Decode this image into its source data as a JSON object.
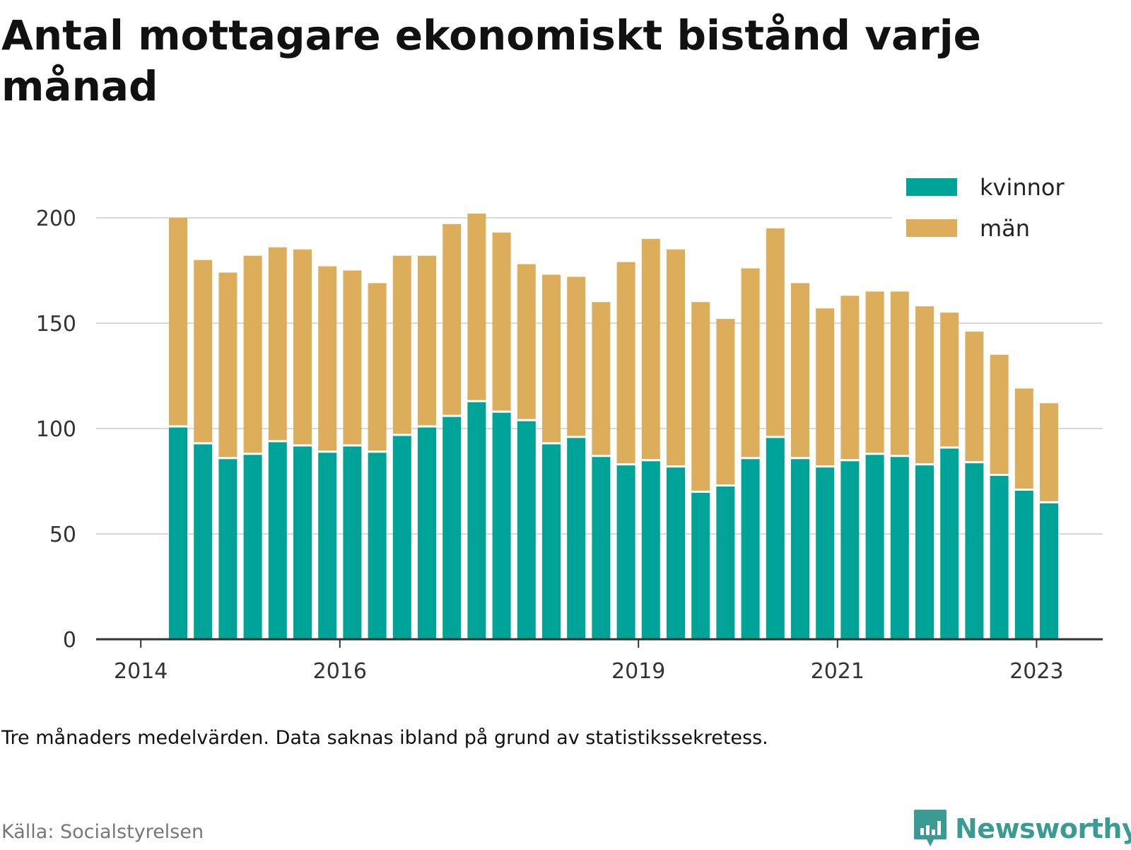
{
  "title": "Antal mottagare ekonomiskt bistånd varje månad",
  "note": "Tre månaders medelvärden. Data saknas ibland på grund av statistikssekretess.",
  "source": "Källa: Socialstyrelsen",
  "brand": {
    "name": "Newsworthy",
    "icon": "bar-chart-bubble-icon",
    "color": "#3a9b93"
  },
  "chart_data": {
    "type": "bar",
    "stacked": true,
    "title": "Antal mottagare ekonomiskt bistånd varje månad",
    "xlabel": "",
    "ylabel": "",
    "ylim": [
      0,
      200
    ],
    "yticks": [
      0,
      50,
      100,
      150,
      200
    ],
    "xtick_labels": [
      "2014",
      "2016",
      "2019",
      "2021",
      "2023"
    ],
    "grid": "horizontal",
    "legend_position": "top-right",
    "categories": [
      "2014-Q2",
      "2014-Q3",
      "2014-Q4",
      "2015-Q1",
      "2015-Q2",
      "2015-Q3",
      "2015-Q4",
      "2016-Q1",
      "2016-Q2",
      "2016-Q3",
      "2016-Q4",
      "2017-Q1",
      "2017-Q2",
      "2017-Q3",
      "2017-Q4",
      "2018-Q1",
      "2018-Q2",
      "2018-Q3",
      "2018-Q4",
      "2019-Q1",
      "2019-Q2",
      "2019-Q3",
      "2019-Q4",
      "2020-Q1",
      "2020-Q2",
      "2020-Q3",
      "2020-Q4",
      "2021-Q1",
      "2021-Q2",
      "2021-Q3",
      "2021-Q4",
      "2022-Q1",
      "2022-Q2",
      "2022-Q3",
      "2022-Q4",
      "2023-Q1"
    ],
    "series": [
      {
        "name": "kvinnor",
        "color": "#00a398",
        "values": [
          101,
          93,
          86,
          88,
          94,
          92,
          89,
          92,
          89,
          97,
          101,
          106,
          113,
          108,
          104,
          93,
          96,
          87,
          83,
          85,
          82,
          70,
          73,
          86,
          96,
          86,
          82,
          85,
          88,
          87,
          83,
          91,
          84,
          78,
          71,
          65
        ]
      },
      {
        "name": "män",
        "color": "#dcae5c",
        "values": [
          99,
          87,
          88,
          94,
          92,
          93,
          88,
          83,
          80,
          85,
          81,
          91,
          89,
          85,
          74,
          80,
          76,
          73,
          96,
          105,
          103,
          90,
          79,
          90,
          99,
          83,
          75,
          78,
          77,
          78,
          75,
          64,
          62,
          57,
          48,
          47
        ]
      }
    ]
  }
}
